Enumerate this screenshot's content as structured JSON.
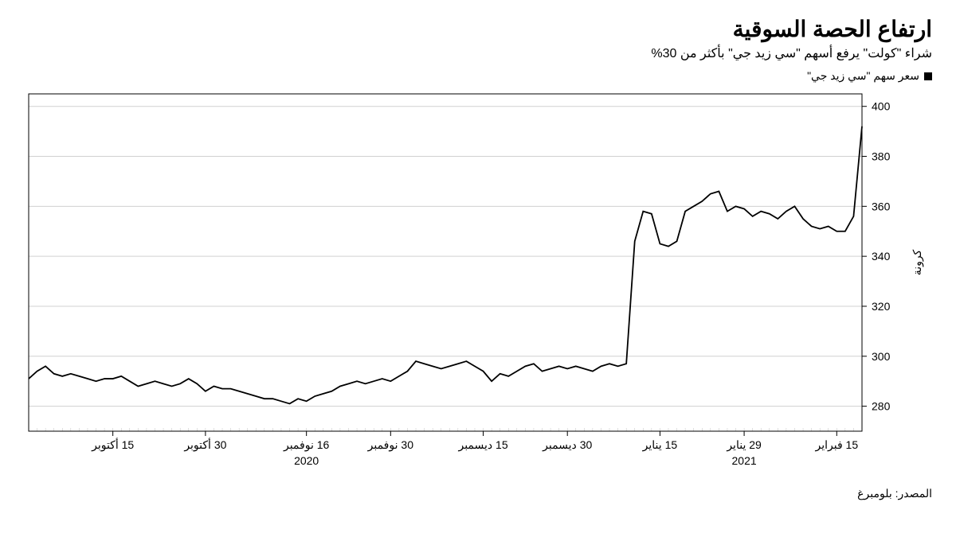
{
  "title": "ارتفاع الحصة السوقية",
  "subtitle": "شراء \"كولت\" يرفع أسهم \"سي زيد جي\" بأكثر من 30%",
  "legend_label": "سعر سهم \"سي زيد جي\"",
  "source": "المصدر: بلومبرغ",
  "chart": {
    "type": "line",
    "background_color": "#ffffff",
    "grid_color": "#d0d0d0",
    "line_color": "#000000",
    "line_width": 1.8,
    "y_axis": {
      "title": "كرونة",
      "position": "right",
      "min": 270,
      "max": 405,
      "ticks": [
        280,
        300,
        320,
        340,
        360,
        380,
        400
      ],
      "tick_fontsize": 14
    },
    "x_axis": {
      "ticks": [
        {
          "i": 10,
          "label": "15 أكتوبر",
          "year": ""
        },
        {
          "i": 21,
          "label": "30 أكتوبر",
          "year": ""
        },
        {
          "i": 33,
          "label": "16 نوفمبر",
          "year": "2020"
        },
        {
          "i": 43,
          "label": "30 نوفمبر",
          "year": ""
        },
        {
          "i": 54,
          "label": "15 ديسمبر",
          "year": ""
        },
        {
          "i": 64,
          "label": "30 ديسمبر",
          "year": ""
        },
        {
          "i": 75,
          "label": "15 يناير",
          "year": ""
        },
        {
          "i": 85,
          "label": "29 يناير",
          "year": "2021"
        },
        {
          "i": 96,
          "label": "15 فبراير",
          "year": ""
        }
      ],
      "tick_fontsize": 14,
      "n_points": 100
    },
    "series": {
      "values": [
        291,
        294,
        296,
        293,
        292,
        293,
        292,
        291,
        290,
        291,
        291,
        292,
        290,
        288,
        289,
        290,
        289,
        288,
        289,
        291,
        289,
        286,
        288,
        287,
        287,
        286,
        285,
        284,
        283,
        283,
        282,
        281,
        283,
        282,
        284,
        285,
        286,
        288,
        289,
        290,
        289,
        290,
        291,
        290,
        292,
        294,
        298,
        297,
        296,
        295,
        296,
        297,
        298,
        296,
        294,
        290,
        293,
        292,
        294,
        296,
        297,
        294,
        295,
        296,
        295,
        296,
        295,
        294,
        296,
        297,
        296,
        297,
        346,
        358,
        357,
        345,
        344,
        346,
        358,
        360,
        362,
        365,
        366,
        358,
        360,
        359,
        356,
        358,
        357,
        355,
        358,
        360,
        355,
        352,
        351,
        352,
        350,
        350,
        356,
        392
      ]
    }
  }
}
